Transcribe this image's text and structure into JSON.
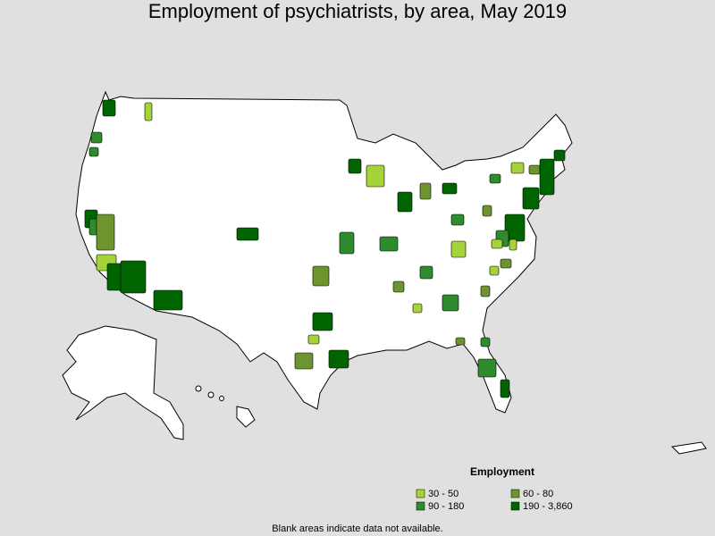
{
  "title": "Employment of psychiatrists, by area, May 2019",
  "legend": {
    "title": "Employment",
    "items": [
      {
        "label": "30 - 50",
        "color": "#a6d23a"
      },
      {
        "label": "60 - 80",
        "color": "#6e9430"
      },
      {
        "label": "90 - 180",
        "color": "#2e8b2e"
      },
      {
        "label": "190 - 3,860",
        "color": "#006400"
      }
    ]
  },
  "note": "Blank areas indicate data not available."
}
